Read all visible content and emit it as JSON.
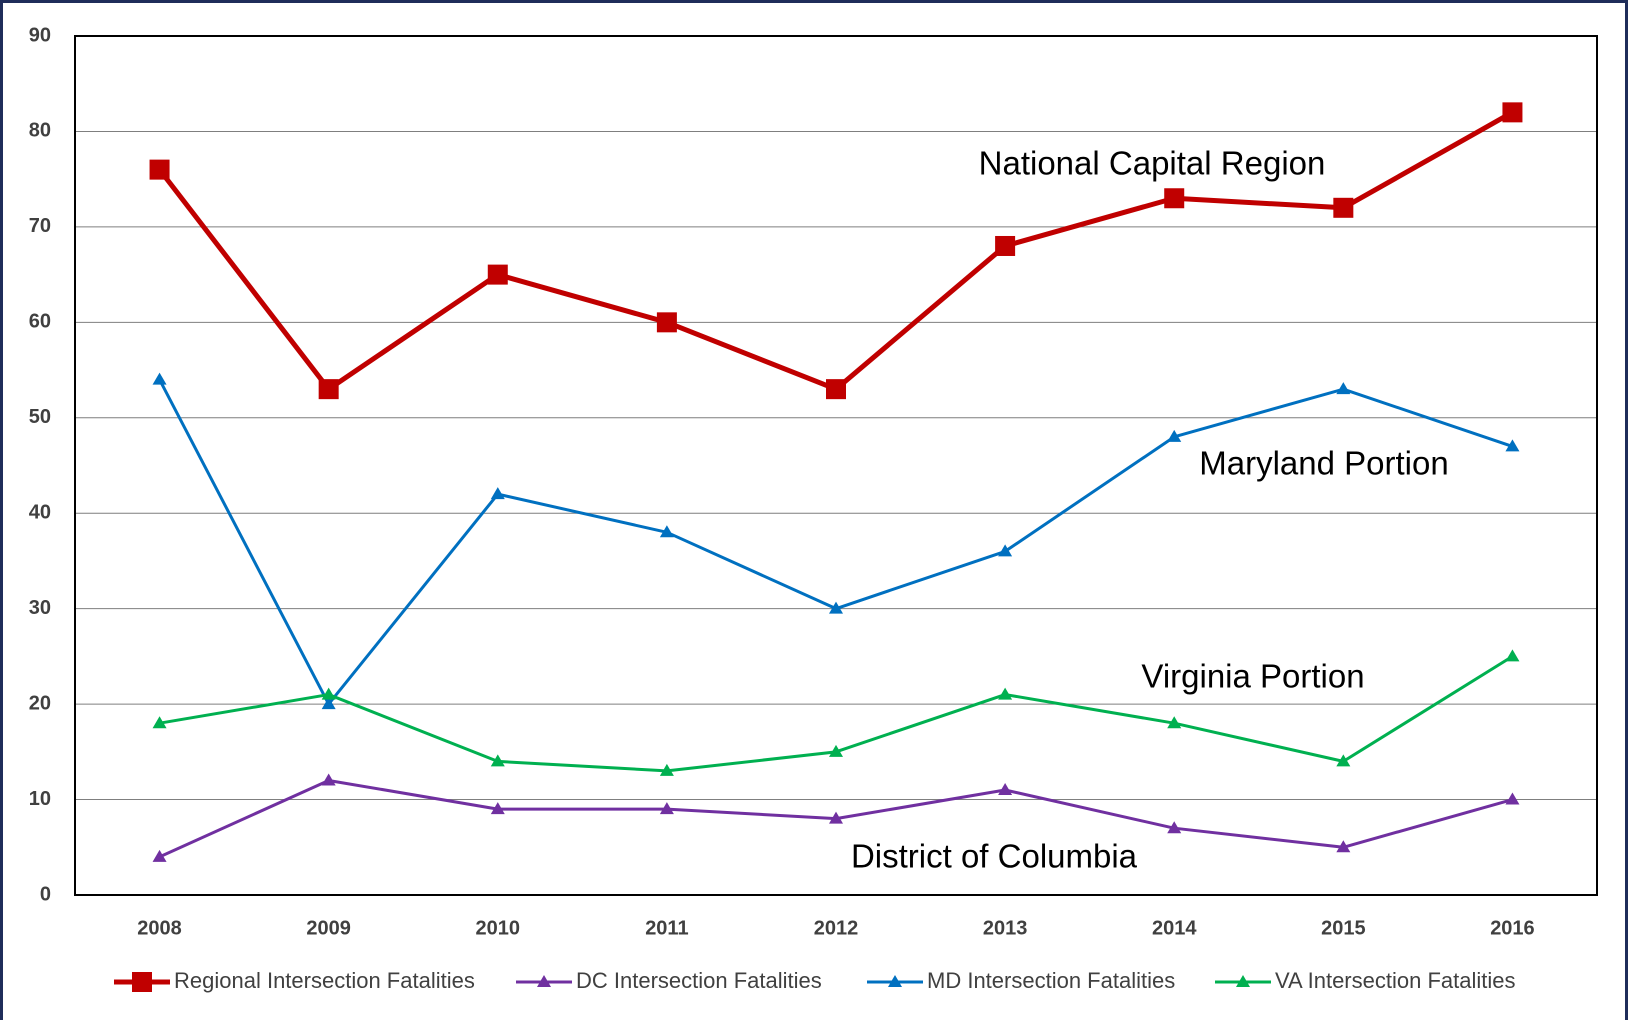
{
  "chart_data": {
    "type": "line",
    "categories": [
      "2008",
      "2009",
      "2010",
      "2011",
      "2012",
      "2013",
      "2014",
      "2015",
      "2016"
    ],
    "series": [
      {
        "name": "Regional Intersection Fatalities",
        "color": "#c00000",
        "marker": "square",
        "values": [
          76,
          53,
          65,
          60,
          53,
          68,
          73,
          72,
          82
        ]
      },
      {
        "name": "DC Intersection Fatalities",
        "color": "#7030a0",
        "marker": "triangle",
        "values": [
          4,
          12,
          9,
          9,
          8,
          11,
          7,
          5,
          10
        ]
      },
      {
        "name": "MD Intersection Fatalities",
        "color": "#0070c0",
        "marker": "triangle",
        "values": [
          54,
          20,
          42,
          38,
          30,
          36,
          48,
          53,
          47
        ]
      },
      {
        "name": "VA Intersection Fatalities",
        "color": "#00b050",
        "marker": "triangle",
        "values": [
          18,
          21,
          14,
          13,
          15,
          21,
          18,
          14,
          25
        ]
      }
    ],
    "annotations": [
      "National Capital Region",
      "Maryland Portion",
      "Virginia Portion",
      "District of Columbia"
    ],
    "ylim": [
      0,
      90
    ],
    "yticks": [
      0,
      10,
      20,
      30,
      40,
      50,
      60,
      70,
      80,
      90
    ],
    "grid": true,
    "legend": "bottom"
  }
}
